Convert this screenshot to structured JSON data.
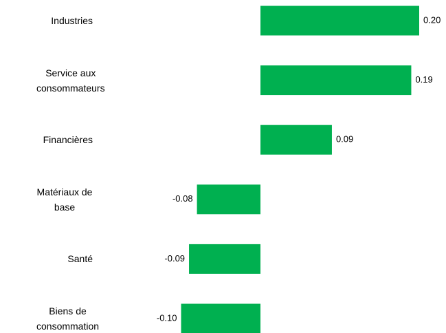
{
  "chart_data": {
    "type": "bar",
    "orientation": "horizontal",
    "categories": [
      "Industries",
      "Service aux consommateurs",
      "Financières",
      "Matériaux de base",
      "Santé",
      "Biens de consommation"
    ],
    "values": [
      0.2,
      0.19,
      0.09,
      -0.08,
      -0.09,
      -0.1
    ],
    "value_labels": [
      "0.20",
      "0.19",
      "0.09",
      "-0.08",
      "-0.09",
      "-0.10"
    ],
    "color": "#00b050"
  }
}
